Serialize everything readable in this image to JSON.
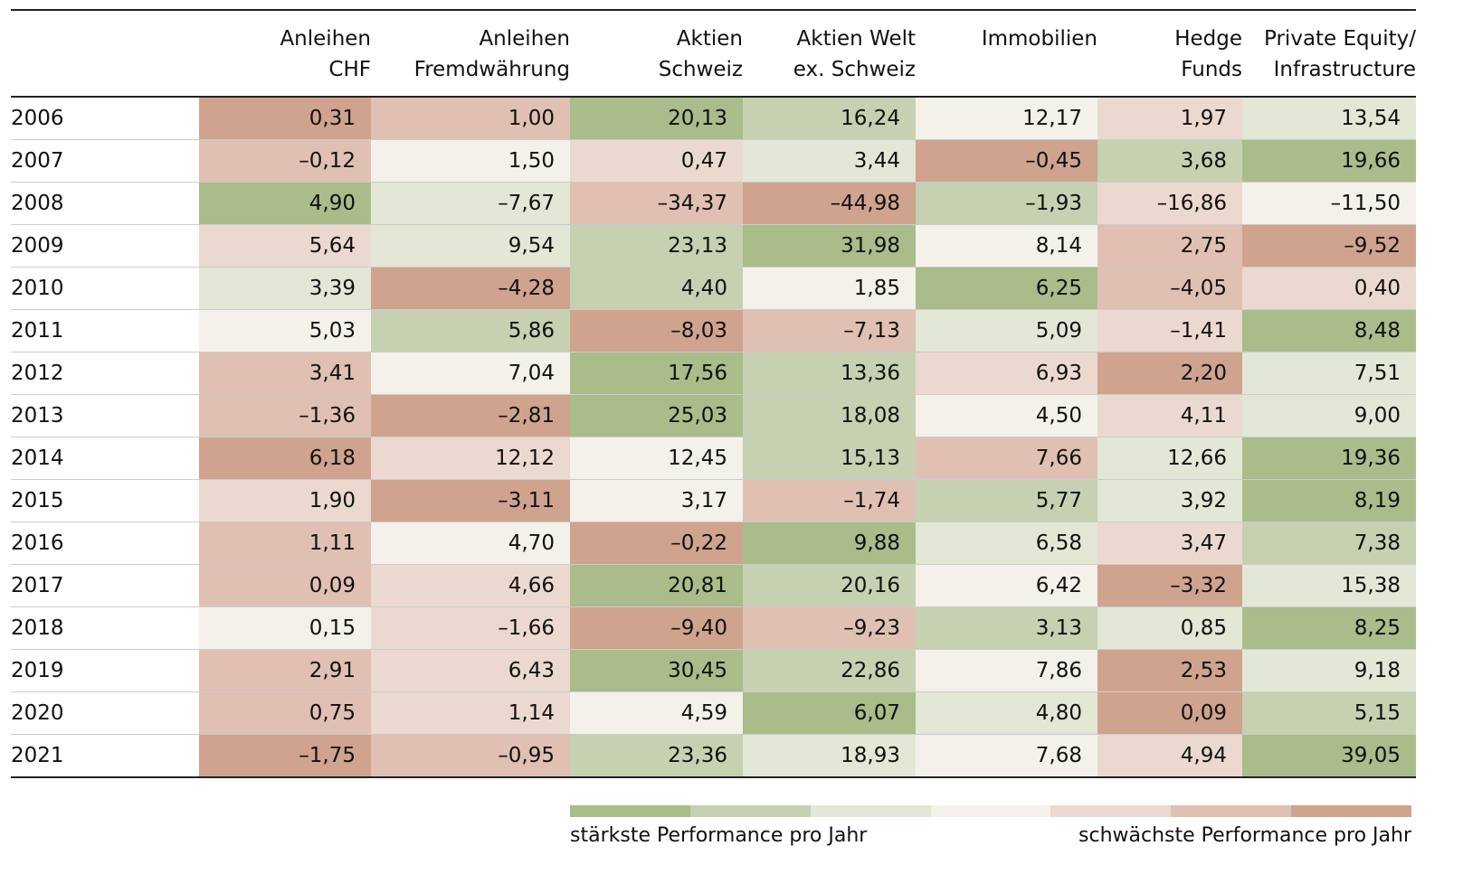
{
  "table": {
    "columns": [
      [
        "Anleihen",
        "CHF"
      ],
      [
        "Anleihen",
        "Fremdwährung"
      ],
      [
        "Aktien",
        "Schweiz"
      ],
      [
        "Aktien Welt",
        "ex. Schweiz"
      ],
      [
        "Immobilien"
      ],
      [
        "Hedge",
        "Funds"
      ],
      [
        "Private Equity/",
        "Infrastructure"
      ]
    ],
    "rows": [
      [
        "2006",
        "0,31",
        "1,00",
        "20,13",
        "16,24",
        "12,17",
        "1,97",
        "13,54"
      ],
      [
        "2007",
        "–0,12",
        "1,50",
        "0,47",
        "3,44",
        "–0,45",
        "3,68",
        "19,66"
      ],
      [
        "2008",
        "4,90",
        "–7,67",
        "–34,37",
        "–44,98",
        "–1,93",
        "–16,86",
        "–11,50"
      ],
      [
        "2009",
        "5,64",
        "9,54",
        "23,13",
        "31,98",
        "8,14",
        "2,75",
        "–9,52"
      ],
      [
        "2010",
        "3,39",
        "–4,28",
        "4,40",
        "1,85",
        "6,25",
        "–4,05",
        "0,40"
      ],
      [
        "2011",
        "5,03",
        "5,86",
        "–8,03",
        "–7,13",
        "5,09",
        "–1,41",
        "8,48"
      ],
      [
        "2012",
        "3,41",
        "7,04",
        "17,56",
        "13,36",
        "6,93",
        "2,20",
        "7,51"
      ],
      [
        "2013",
        "–1,36",
        "–2,81",
        "25,03",
        "18,08",
        "4,50",
        "4,11",
        "9,00"
      ],
      [
        "2014",
        "6,18",
        "12,12",
        "12,45",
        "15,13",
        "7,66",
        "12,66",
        "19,36"
      ],
      [
        "2015",
        "1,90",
        "–3,11",
        "3,17",
        "–1,74",
        "5,77",
        "3,92",
        "8,19"
      ],
      [
        "2016",
        "1,11",
        "4,70",
        "–0,22",
        "9,88",
        "6,58",
        "3,47",
        "7,38"
      ],
      [
        "2017",
        "0,09",
        "4,66",
        "20,81",
        "20,16",
        "6,42",
        "–3,32",
        "15,38"
      ],
      [
        "2018",
        "0,15",
        "–1,66",
        "–9,40",
        "–9,23",
        "3,13",
        "0,85",
        "8,25"
      ],
      [
        "2019",
        "2,91",
        "6,43",
        "30,45",
        "22,86",
        "7,86",
        "2,53",
        "9,18"
      ],
      [
        "2020",
        "0,75",
        "1,14",
        "4,59",
        "6,07",
        "4,80",
        "0,09",
        "5,15"
      ],
      [
        "2021",
        "–1,75",
        "–0,95",
        "23,36",
        "18,93",
        "7,68",
        "4,94",
        "39,05"
      ]
    ]
  },
  "legend": {
    "colors": [
      "#a9bc8a",
      "#c5d1b0",
      "#e2e7d6",
      "#f4f1ea",
      "#ebd9cf",
      "#dfc0b2",
      "#cfa38e"
    ],
    "best": "stärkste Performance pro Jahr",
    "worst": "schwächste Performance pro Jahr"
  }
}
